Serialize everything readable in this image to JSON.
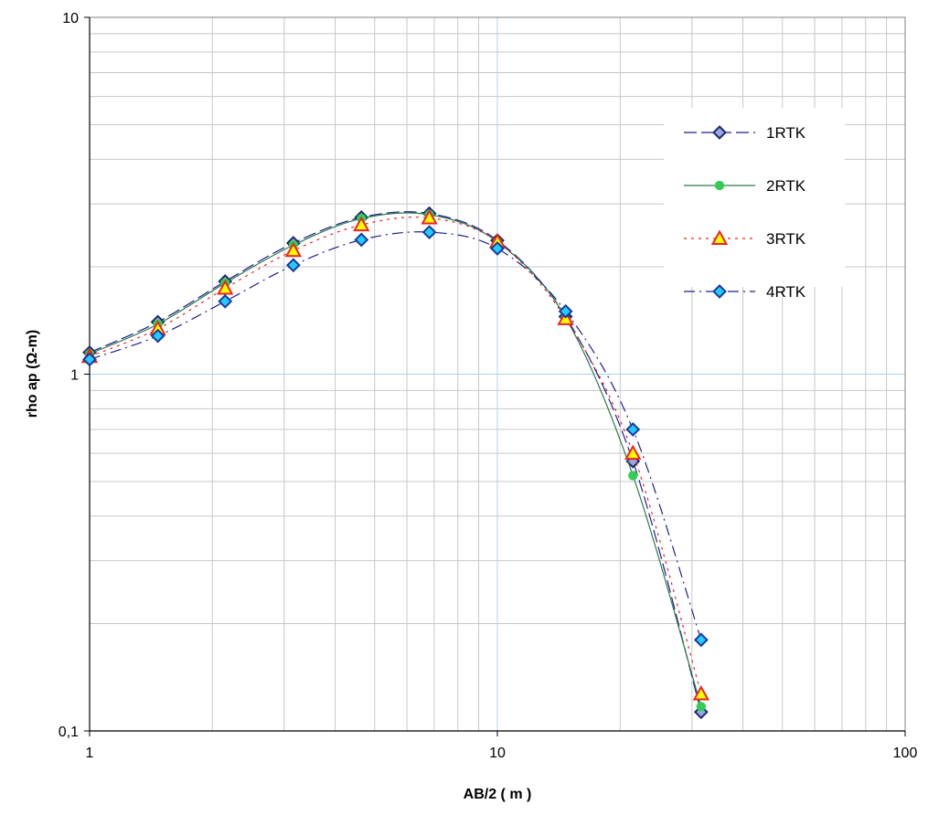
{
  "chart_data": {
    "type": "line",
    "title": "",
    "xlabel": "AB/2 ( m )",
    "ylabel": "rho ap (Ω-m)",
    "xscale": "log",
    "yscale": "log",
    "xlim": [
      1,
      100
    ],
    "ylim": [
      0.1,
      10
    ],
    "x_ticks": [
      {
        "value": 1,
        "label": "1"
      },
      {
        "value": 10,
        "label": "10"
      },
      {
        "value": 100,
        "label": "100"
      }
    ],
    "y_ticks": [
      {
        "value": 0.1,
        "label": "0,1"
      },
      {
        "value": 1,
        "label": "1"
      },
      {
        "value": 10,
        "label": "10"
      }
    ],
    "grid": true,
    "legend_position": "top-right",
    "series": [
      {
        "name": "1RTK",
        "color": "#1f1f8f",
        "marker": "diamond",
        "marker_fill": "#9aa6de",
        "marker_stroke": "#1b2a6b",
        "dash": "long-dash",
        "x": [
          1,
          1.47,
          2.15,
          3.16,
          4.64,
          6.81,
          10,
          14.7,
          21.5,
          31.6
        ],
        "y": [
          1.15,
          1.4,
          1.82,
          2.33,
          2.75,
          2.82,
          2.37,
          1.45,
          0.57,
          0.113
        ]
      },
      {
        "name": "2RTK",
        "color": "#2a7a4a",
        "marker": "circle",
        "marker_fill": "#33cc55",
        "marker_stroke": "#33cc55",
        "dash": "solid",
        "x": [
          1,
          1.47,
          2.15,
          3.16,
          4.64,
          6.81,
          10,
          14.7,
          21.5,
          31.6
        ],
        "y": [
          1.14,
          1.38,
          1.8,
          2.3,
          2.73,
          2.8,
          2.35,
          1.44,
          0.52,
          0.117
        ]
      },
      {
        "name": "3RTK",
        "color": "#ee2222",
        "marker": "triangle",
        "marker_fill": "#ffff00",
        "marker_stroke": "#ee2222",
        "dash": "dot",
        "x": [
          1,
          1.47,
          2.15,
          3.16,
          4.64,
          6.81,
          10,
          14.7,
          21.5,
          31.6
        ],
        "y": [
          1.12,
          1.34,
          1.74,
          2.22,
          2.62,
          2.74,
          2.35,
          1.43,
          0.6,
          0.127
        ]
      },
      {
        "name": "4RTK",
        "color": "#1f1f8f",
        "marker": "diamond",
        "marker_fill": "#22ccff",
        "marker_stroke": "#1b3a9b",
        "dash": "dash-dot",
        "x": [
          1,
          1.47,
          2.15,
          3.16,
          4.64,
          6.81,
          10,
          14.7,
          21.5,
          31.6
        ],
        "y": [
          1.1,
          1.28,
          1.6,
          2.02,
          2.38,
          2.5,
          2.25,
          1.5,
          0.7,
          0.18
        ]
      }
    ]
  }
}
